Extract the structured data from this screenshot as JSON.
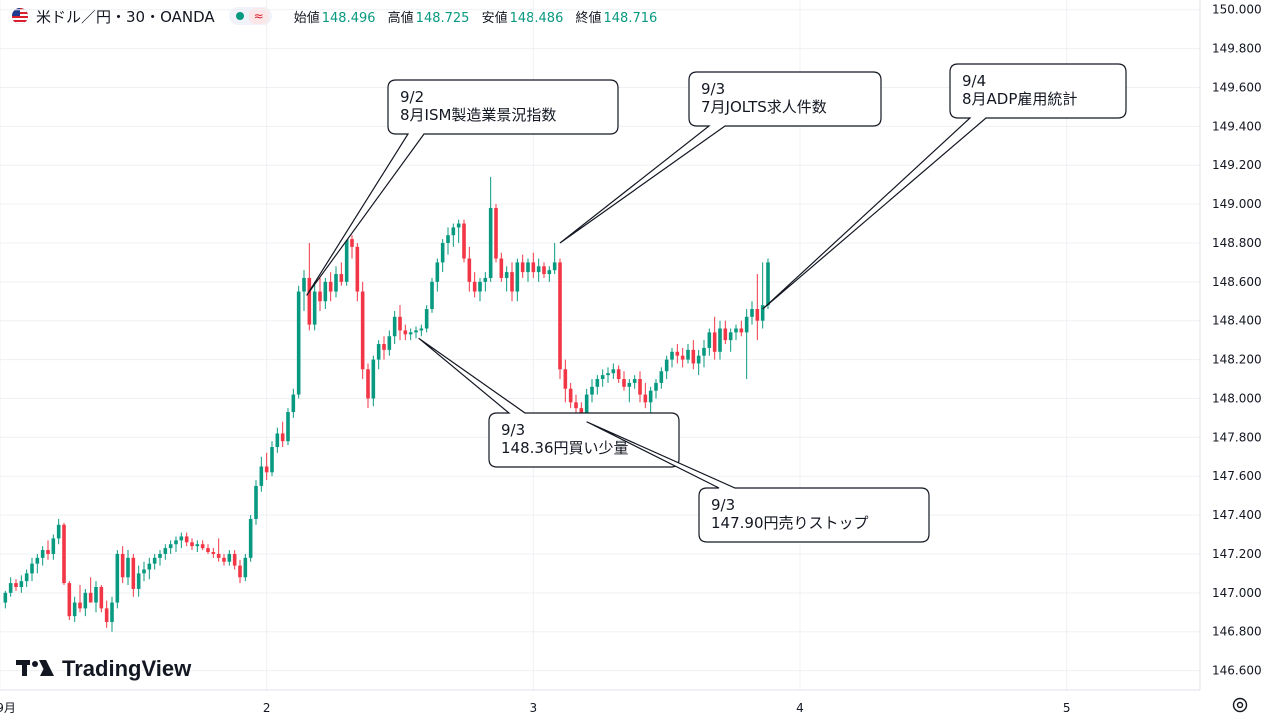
{
  "header": {
    "symbol": "米ドル／円・30・OANDA",
    "open_label": "始値",
    "open": "148.496",
    "high_label": "高値",
    "high": "148.725",
    "low_label": "安値",
    "low": "148.486",
    "close_label": "終値",
    "close": "148.716",
    "status_icon": "wave-icon",
    "wave_glyph": "≈"
  },
  "brand": {
    "name": "TradingView"
  },
  "colors": {
    "up": "#089981",
    "down": "#f23645",
    "grid": "#eef0f3",
    "text": "#131722"
  },
  "chart_data": {
    "type": "candlestick",
    "y_ticks": [
      "150.000",
      "149.800",
      "149.600",
      "149.400",
      "149.200",
      "149.000",
      "148.800",
      "148.600",
      "148.400",
      "148.200",
      "148.000",
      "147.800",
      "147.600",
      "147.400",
      "147.200",
      "147.000",
      "146.800",
      "146.600"
    ],
    "ylim": [
      146.5,
      150.05
    ],
    "x_ticks": [
      {
        "label": "9月",
        "day": 1
      },
      {
        "label": "2",
        "day": 2
      },
      {
        "label": "3",
        "day": 3
      },
      {
        "label": "4",
        "day": 4
      },
      {
        "label": "5",
        "day": 5
      }
    ],
    "xlim": [
      1.0,
      5.5
    ],
    "candles": [
      [
        1.02,
        146.95,
        147.01,
        146.92,
        147.0
      ],
      [
        1.04,
        147.0,
        147.08,
        146.98,
        147.05
      ],
      [
        1.06,
        147.05,
        147.07,
        147.01,
        147.03
      ],
      [
        1.08,
        147.03,
        147.09,
        147.0,
        147.06
      ],
      [
        1.1,
        147.06,
        147.12,
        147.03,
        147.1
      ],
      [
        1.12,
        147.1,
        147.18,
        147.06,
        147.15
      ],
      [
        1.14,
        147.15,
        147.2,
        147.1,
        147.18
      ],
      [
        1.16,
        147.18,
        147.24,
        147.14,
        147.22
      ],
      [
        1.18,
        147.22,
        147.27,
        147.17,
        147.2
      ],
      [
        1.2,
        147.2,
        147.3,
        147.17,
        147.28
      ],
      [
        1.22,
        147.28,
        147.38,
        147.25,
        147.35
      ],
      [
        1.24,
        147.35,
        147.36,
        147.04,
        147.05
      ],
      [
        1.26,
        147.05,
        147.06,
        146.86,
        146.88
      ],
      [
        1.28,
        146.88,
        146.98,
        146.85,
        146.95
      ],
      [
        1.3,
        146.95,
        147.04,
        146.9,
        146.92
      ],
      [
        1.32,
        146.92,
        147.02,
        146.88,
        147.0
      ],
      [
        1.34,
        147.0,
        147.08,
        146.96,
        146.95
      ],
      [
        1.36,
        146.95,
        147.06,
        146.9,
        147.03
      ],
      [
        1.38,
        147.03,
        147.04,
        146.9,
        146.92
      ],
      [
        1.4,
        146.92,
        146.96,
        146.82,
        146.85
      ],
      [
        1.42,
        146.85,
        146.98,
        146.8,
        146.95
      ],
      [
        1.44,
        146.95,
        147.22,
        146.92,
        147.2
      ],
      [
        1.46,
        147.2,
        147.24,
        147.05,
        147.08
      ],
      [
        1.48,
        147.08,
        147.22,
        147.04,
        147.18
      ],
      [
        1.5,
        147.18,
        147.2,
        146.98,
        147.02
      ],
      [
        1.52,
        147.02,
        147.14,
        146.98,
        147.1
      ],
      [
        1.54,
        147.1,
        147.16,
        147.06,
        147.12
      ],
      [
        1.56,
        147.12,
        147.18,
        147.07,
        147.15
      ],
      [
        1.58,
        147.15,
        147.2,
        147.12,
        147.18
      ],
      [
        1.6,
        147.18,
        147.22,
        147.14,
        147.2
      ],
      [
        1.62,
        147.2,
        147.25,
        147.17,
        147.23
      ],
      [
        1.64,
        147.23,
        147.27,
        147.2,
        147.25
      ],
      [
        1.66,
        147.25,
        147.29,
        147.21,
        147.27
      ],
      [
        1.68,
        147.27,
        147.31,
        147.23,
        147.29
      ],
      [
        1.7,
        147.29,
        147.31,
        147.24,
        147.26
      ],
      [
        1.72,
        147.26,
        147.28,
        147.22,
        147.24
      ],
      [
        1.74,
        147.24,
        147.27,
        147.21,
        147.25
      ],
      [
        1.76,
        147.25,
        147.27,
        147.22,
        147.23
      ],
      [
        1.78,
        147.23,
        147.25,
        147.2,
        147.21
      ],
      [
        1.8,
        147.21,
        147.23,
        147.18,
        147.2
      ],
      [
        1.82,
        147.2,
        147.28,
        147.16,
        147.18
      ],
      [
        1.84,
        147.18,
        147.2,
        147.14,
        147.16
      ],
      [
        1.86,
        147.16,
        147.22,
        147.14,
        147.2
      ],
      [
        1.88,
        147.2,
        147.22,
        147.12,
        147.14
      ],
      [
        1.9,
        147.14,
        147.17,
        147.05,
        147.08
      ],
      [
        1.92,
        147.08,
        147.2,
        147.06,
        147.18
      ],
      [
        1.94,
        147.18,
        147.4,
        147.16,
        147.38
      ],
      [
        1.96,
        147.38,
        147.58,
        147.35,
        147.55
      ],
      [
        1.98,
        147.55,
        147.7,
        147.52,
        147.65
      ],
      [
        2.0,
        147.65,
        147.72,
        147.58,
        147.62
      ],
      [
        2.02,
        147.62,
        147.78,
        147.6,
        147.75
      ],
      [
        2.04,
        147.75,
        147.85,
        147.72,
        147.82
      ],
      [
        2.06,
        147.82,
        147.88,
        147.75,
        147.78
      ],
      [
        2.08,
        147.78,
        147.95,
        147.76,
        147.93
      ],
      [
        2.1,
        147.93,
        148.05,
        147.9,
        148.02
      ],
      [
        2.12,
        148.02,
        148.58,
        148.0,
        148.55
      ],
      [
        2.14,
        148.55,
        148.66,
        148.45,
        148.62
      ],
      [
        2.16,
        148.62,
        148.8,
        148.35,
        148.38
      ],
      [
        2.18,
        148.38,
        148.6,
        148.35,
        148.55
      ],
      [
        2.2,
        148.55,
        148.62,
        148.45,
        148.5
      ],
      [
        2.22,
        148.5,
        148.62,
        148.46,
        148.6
      ],
      [
        2.24,
        148.6,
        148.65,
        148.5,
        148.55
      ],
      [
        2.26,
        148.55,
        148.68,
        148.52,
        148.64
      ],
      [
        2.28,
        148.64,
        148.7,
        148.58,
        148.6
      ],
      [
        2.3,
        148.6,
        148.85,
        148.58,
        148.82
      ],
      [
        2.32,
        148.82,
        148.84,
        148.72,
        148.78
      ],
      [
        2.34,
        148.78,
        148.8,
        148.5,
        148.55
      ],
      [
        2.36,
        148.55,
        148.6,
        148.1,
        148.15
      ],
      [
        2.38,
        148.15,
        148.18,
        147.95,
        148.0
      ],
      [
        2.4,
        148.0,
        148.22,
        147.96,
        148.2
      ],
      [
        2.42,
        148.2,
        148.3,
        148.15,
        148.28
      ],
      [
        2.44,
        148.28,
        148.32,
        148.2,
        148.25
      ],
      [
        2.46,
        148.25,
        148.35,
        148.22,
        148.32
      ],
      [
        2.48,
        148.32,
        148.45,
        148.28,
        148.42
      ],
      [
        2.5,
        148.42,
        148.48,
        148.3,
        148.35
      ],
      [
        2.52,
        148.35,
        148.38,
        148.3,
        148.33
      ],
      [
        2.54,
        148.33,
        148.36,
        148.3,
        148.34
      ],
      [
        2.56,
        148.34,
        148.37,
        148.31,
        148.35
      ],
      [
        2.58,
        148.35,
        148.38,
        148.32,
        148.36
      ],
      [
        2.6,
        148.36,
        148.48,
        148.34,
        148.46
      ],
      [
        2.62,
        148.46,
        148.62,
        148.44,
        148.6
      ],
      [
        2.64,
        148.6,
        148.72,
        148.55,
        148.7
      ],
      [
        2.66,
        148.7,
        148.82,
        148.65,
        148.8
      ],
      [
        2.68,
        148.8,
        148.88,
        148.74,
        148.84
      ],
      [
        2.7,
        148.84,
        148.9,
        148.78,
        148.88
      ],
      [
        2.72,
        148.88,
        148.92,
        148.8,
        148.9
      ],
      [
        2.74,
        148.9,
        148.92,
        148.7,
        148.72
      ],
      [
        2.76,
        148.72,
        148.78,
        148.55,
        148.6
      ],
      [
        2.78,
        148.6,
        148.65,
        148.52,
        148.55
      ],
      [
        2.8,
        148.55,
        148.62,
        148.5,
        148.6
      ],
      [
        2.82,
        148.6,
        148.65,
        148.55,
        148.62
      ],
      [
        2.84,
        148.62,
        149.14,
        148.6,
        148.98
      ],
      [
        2.86,
        148.98,
        149.0,
        148.7,
        148.72
      ],
      [
        2.88,
        148.72,
        148.75,
        148.6,
        148.62
      ],
      [
        2.9,
        148.62,
        148.68,
        148.55,
        148.65
      ],
      [
        2.92,
        148.65,
        148.7,
        148.5,
        148.55
      ],
      [
        2.94,
        148.55,
        148.72,
        148.5,
        148.7
      ],
      [
        2.96,
        148.7,
        148.74,
        148.62,
        148.65
      ],
      [
        2.98,
        148.65,
        148.72,
        148.6,
        148.7
      ],
      [
        3.0,
        148.7,
        148.75,
        148.62,
        148.65
      ],
      [
        3.02,
        148.65,
        148.72,
        148.6,
        148.68
      ],
      [
        3.04,
        148.68,
        148.7,
        148.62,
        148.64
      ],
      [
        3.06,
        148.64,
        148.68,
        148.6,
        148.66
      ],
      [
        3.08,
        148.66,
        148.8,
        148.64,
        148.7
      ],
      [
        3.1,
        148.7,
        148.72,
        148.1,
        148.15
      ],
      [
        3.12,
        148.15,
        148.2,
        147.98,
        148.05
      ],
      [
        3.14,
        148.05,
        148.08,
        147.95,
        147.98
      ],
      [
        3.16,
        147.98,
        148.02,
        147.92,
        147.95
      ],
      [
        3.18,
        147.95,
        147.98,
        147.88,
        147.92
      ],
      [
        3.2,
        147.92,
        148.05,
        147.9,
        148.02
      ],
      [
        3.22,
        148.02,
        148.1,
        147.98,
        148.06
      ],
      [
        3.24,
        148.06,
        148.12,
        148.02,
        148.1
      ],
      [
        3.26,
        148.1,
        148.15,
        148.06,
        148.12
      ],
      [
        3.28,
        148.12,
        148.16,
        148.08,
        148.13
      ],
      [
        3.3,
        148.13,
        148.18,
        148.1,
        148.15
      ],
      [
        3.32,
        148.15,
        148.17,
        148.08,
        148.1
      ],
      [
        3.34,
        148.1,
        148.14,
        148.04,
        148.06
      ],
      [
        3.36,
        148.06,
        148.1,
        147.98,
        148.08
      ],
      [
        3.38,
        148.08,
        148.12,
        148.05,
        148.1
      ],
      [
        3.4,
        148.1,
        148.14,
        147.98,
        148.02
      ],
      [
        3.42,
        148.02,
        148.08,
        147.95,
        147.98
      ],
      [
        3.44,
        147.98,
        148.06,
        147.8,
        148.04
      ],
      [
        3.46,
        148.04,
        148.1,
        148.0,
        148.08
      ],
      [
        3.48,
        148.08,
        148.16,
        148.05,
        148.14
      ],
      [
        3.5,
        148.14,
        148.22,
        148.1,
        148.2
      ],
      [
        3.52,
        148.2,
        148.26,
        148.16,
        148.24
      ],
      [
        3.54,
        148.24,
        148.28,
        148.18,
        148.22
      ],
      [
        3.56,
        148.22,
        148.26,
        148.16,
        148.2
      ],
      [
        3.58,
        148.2,
        148.28,
        148.18,
        148.25
      ],
      [
        3.6,
        148.25,
        148.3,
        148.15,
        148.18
      ],
      [
        3.62,
        148.18,
        148.25,
        148.12,
        148.22
      ],
      [
        3.64,
        148.22,
        148.3,
        148.16,
        148.26
      ],
      [
        3.66,
        148.26,
        148.36,
        148.22,
        148.34
      ],
      [
        3.68,
        148.34,
        148.42,
        148.2,
        148.24
      ],
      [
        3.7,
        148.24,
        148.4,
        148.2,
        148.36
      ],
      [
        3.72,
        148.36,
        148.4,
        148.28,
        148.3
      ],
      [
        3.74,
        148.3,
        148.36,
        148.24,
        148.34
      ],
      [
        3.76,
        148.34,
        148.38,
        148.3,
        148.36
      ],
      [
        3.78,
        148.36,
        148.4,
        148.32,
        148.34
      ],
      [
        3.8,
        148.34,
        148.46,
        148.1,
        148.42
      ],
      [
        3.82,
        148.42,
        148.5,
        148.38,
        148.46
      ],
      [
        3.84,
        148.46,
        148.64,
        148.3,
        148.4
      ],
      [
        3.86,
        148.4,
        148.7,
        148.36,
        148.48
      ],
      [
        3.88,
        148.48,
        148.72,
        148.46,
        148.7
      ]
    ],
    "annotations": [
      {
        "text": [
          "9/2",
          "8月ISM製造業景況指数"
        ],
        "anchor": [
          2.15,
          148.53
        ]
      },
      {
        "text": [
          "9/3",
          "7月JOLTS求人件数"
        ],
        "anchor": [
          3.1,
          148.8
        ]
      },
      {
        "text": [
          "9/4",
          "8月ADP雇用統計"
        ],
        "anchor": [
          3.86,
          148.46
        ]
      },
      {
        "text": [
          "9/3",
          "148.36円買い少量"
        ],
        "anchor": [
          2.57,
          148.31
        ]
      },
      {
        "text": [
          "9/3",
          "147.90円売りストップ"
        ],
        "anchor": [
          3.2,
          147.88
        ]
      }
    ]
  }
}
